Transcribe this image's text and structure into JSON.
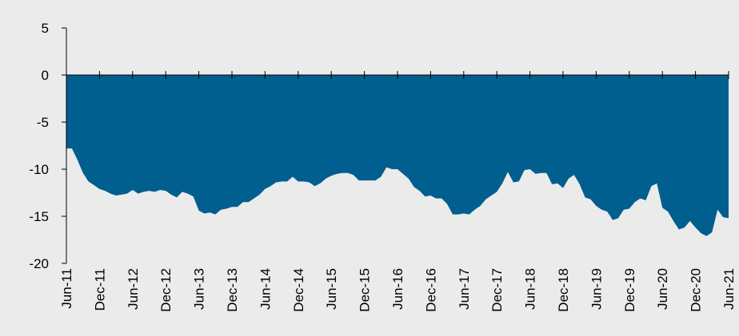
{
  "chart_data": {
    "type": "area",
    "color": "#005f8f",
    "categories": [
      "Jun-11",
      null,
      null,
      null,
      null,
      null,
      "Dec-11",
      null,
      null,
      null,
      null,
      null,
      "Jun-12",
      null,
      null,
      null,
      null,
      null,
      "Dec-12",
      null,
      null,
      null,
      null,
      null,
      "Jun-13",
      null,
      null,
      null,
      null,
      null,
      "Dec-13",
      null,
      null,
      null,
      null,
      null,
      "Jun-14",
      null,
      null,
      null,
      null,
      null,
      "Dec-14",
      null,
      null,
      null,
      null,
      null,
      "Jun-15",
      null,
      null,
      null,
      null,
      null,
      "Dec-15",
      null,
      null,
      null,
      null,
      null,
      "Jun-16",
      null,
      null,
      null,
      null,
      null,
      "Dec-16",
      null,
      null,
      null,
      null,
      null,
      "Jun-17",
      null,
      null,
      null,
      null,
      null,
      "Dec-17",
      null,
      null,
      null,
      null,
      null,
      "Jun-18",
      null,
      null,
      null,
      null,
      null,
      "Dec-18",
      null,
      null,
      null,
      null,
      null,
      "Jun-19",
      null,
      null,
      null,
      null,
      null,
      "Dec-19",
      null,
      null,
      null,
      null,
      null,
      "Jun-20",
      null,
      null,
      null,
      null,
      null,
      "Dec-20",
      null,
      null,
      null,
      null,
      null,
      "Jun-21"
    ],
    "values": [
      -7.8,
      -7.8,
      -9,
      -10.4,
      -11.3,
      -11.7,
      -12.1,
      -12.3,
      -12.6,
      -12.8,
      -12.7,
      -12.6,
      -12.2,
      -12.6,
      -12.4,
      -12.3,
      -12.4,
      -12.2,
      -12.3,
      -12.7,
      -13.0,
      -12.4,
      -12.6,
      -12.9,
      -14.4,
      -14.7,
      -14.6,
      -14.8,
      -14.3,
      -14.2,
      -14.0,
      -14.0,
      -13.5,
      -13.5,
      -13.1,
      -12.7,
      -12.1,
      -11.8,
      -11.4,
      -11.3,
      -11.3,
      -10.8,
      -11.3,
      -11.3,
      -11.4,
      -11.8,
      -11.5,
      -11.0,
      -10.7,
      -10.5,
      -10.4,
      -10.4,
      -10.6,
      -11.2,
      -11.2,
      -11.2,
      -11.2,
      -10.8,
      -9.8,
      -10.0,
      -10.0,
      -10.5,
      -11.0,
      -11.9,
      -12.3,
      -12.9,
      -12.8,
      -13.1,
      -13.1,
      -13.7,
      -14.8,
      -14.8,
      -14.7,
      -14.8,
      -14.3,
      -13.9,
      -13.2,
      -12.8,
      -12.4,
      -11.5,
      -10.3,
      -11.4,
      -11.3,
      -10.1,
      -10.0,
      -10.5,
      -10.4,
      -10.4,
      -11.6,
      -11.5,
      -12.0,
      -11.0,
      -10.6,
      -11.6,
      -13.0,
      -13.2,
      -13.9,
      -14.3,
      -14.5,
      -15.4,
      -15.2,
      -14.3,
      -14.2,
      -13.5,
      -13.1,
      -13.3,
      -11.8,
      -11.5,
      -14.1,
      -14.5,
      -15.5,
      -16.4,
      -16.2,
      -15.5,
      -16.2,
      -16.8,
      -17.1,
      -16.7,
      -14.3,
      -15.1,
      -15.2
    ],
    "ylim": [
      -20,
      5
    ],
    "yticks": [
      -20,
      -15,
      -10,
      -5,
      0,
      5
    ]
  }
}
